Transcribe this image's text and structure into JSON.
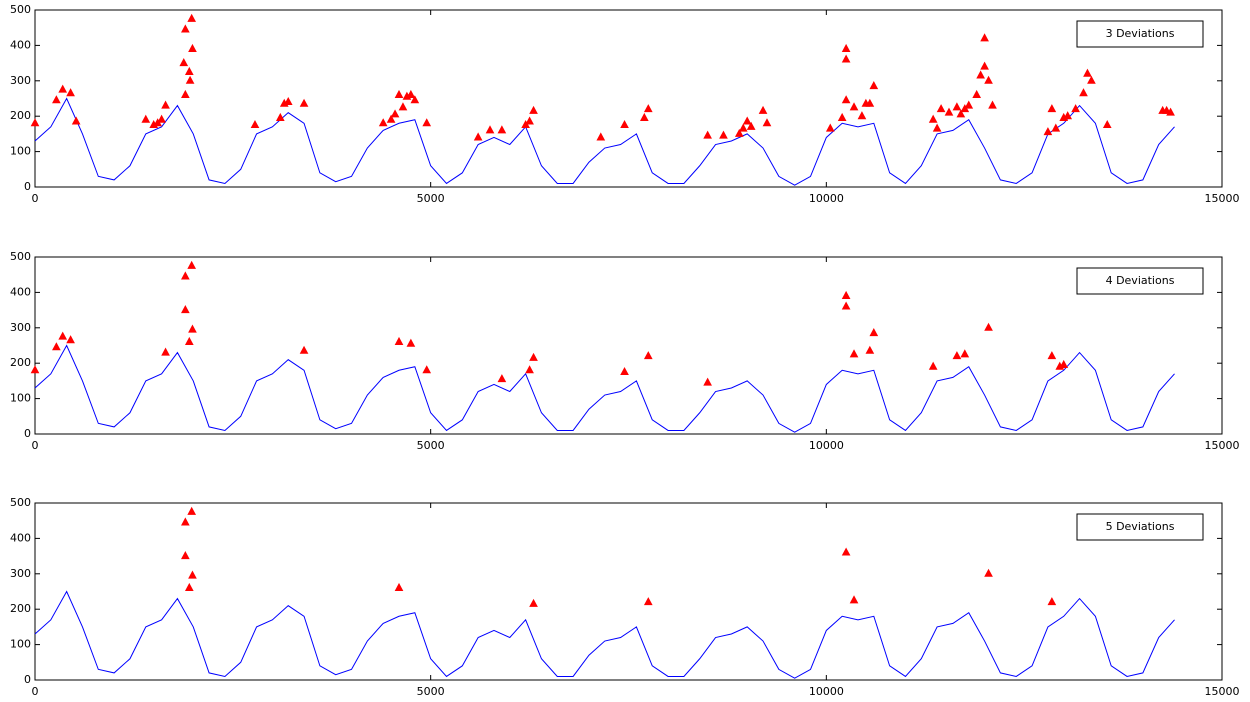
{
  "chart_data": [
    {
      "type": "line",
      "label": "3 Deviations",
      "color": "#0000ff",
      "x": [
        0,
        200,
        400,
        600,
        800,
        1000,
        1200,
        1400,
        1600,
        1800,
        2000,
        2200,
        2400,
        2600,
        2800,
        3000,
        3200,
        3400,
        3600,
        3800,
        4000,
        4200,
        4400,
        4600,
        4800,
        5000,
        5200,
        5400,
        5600,
        5800,
        6000,
        6200,
        6400,
        6600,
        6800,
        7000,
        7200,
        7400,
        7600,
        7800,
        8000,
        8200,
        8400,
        8600,
        8800,
        9000,
        9200,
        9400,
        9600,
        9800,
        10000,
        10200,
        10400,
        10600,
        10800,
        11000,
        11200,
        11400,
        11600,
        11800,
        12000,
        12200,
        12400,
        12600,
        12800,
        13000,
        13200,
        13400,
        13600,
        13800,
        14000,
        14200,
        14400
      ],
      "values": [
        130,
        170,
        250,
        150,
        30,
        20,
        60,
        150,
        170,
        230,
        150,
        20,
        10,
        50,
        150,
        170,
        210,
        180,
        40,
        15,
        30,
        110,
        160,
        180,
        190,
        60,
        10,
        40,
        120,
        140,
        120,
        170,
        60,
        10,
        10,
        70,
        110,
        120,
        150,
        40,
        10,
        10,
        60,
        120,
        130,
        150,
        110,
        30,
        5,
        30,
        140,
        180,
        170,
        180,
        40,
        10,
        60,
        150,
        160,
        190,
        110,
        20,
        10,
        40,
        150,
        180,
        230,
        180,
        40,
        10,
        20,
        120,
        170
      ],
      "markers": {
        "color": "#ff0000",
        "x": [
          0,
          270,
          350,
          450,
          520,
          1400,
          1500,
          1550,
          1600,
          1650,
          1880,
          1900,
          1900,
          1950,
          1960,
          1980,
          1990,
          2780,
          3100,
          3150,
          3200,
          3400,
          4400,
          4500,
          4550,
          4600,
          4650,
          4700,
          4750,
          4800,
          4950,
          5600,
          5750,
          5900,
          6200,
          6250,
          6300,
          7150,
          7450,
          7700,
          7750,
          8500,
          8700,
          8900,
          8950,
          9000,
          9050,
          9200,
          9250,
          10050,
          10200,
          10250,
          10250,
          10250,
          10350,
          10450,
          10500,
          10550,
          10600,
          11350,
          11400,
          11450,
          11550,
          11650,
          11700,
          11750,
          11800,
          11900,
          11950,
          12000,
          12000,
          12050,
          12100,
          12800,
          12850,
          12900,
          13000,
          13050,
          13150,
          13250,
          13300,
          13350,
          13550,
          14250,
          14300,
          14350
        ],
        "values": [
          180,
          245,
          275,
          265,
          185,
          190,
          175,
          180,
          190,
          230,
          350,
          445,
          260,
          325,
          300,
          475,
          390,
          175,
          195,
          235,
          240,
          235,
          180,
          190,
          205,
          260,
          225,
          255,
          260,
          245,
          180,
          140,
          160,
          160,
          175,
          185,
          215,
          140,
          175,
          195,
          220,
          145,
          145,
          150,
          165,
          185,
          170,
          215,
          180,
          165,
          195,
          245,
          360,
          390,
          225,
          200,
          235,
          235,
          285,
          190,
          165,
          220,
          210,
          225,
          205,
          220,
          230,
          260,
          315,
          340,
          420,
          300,
          230,
          155,
          220,
          165,
          195,
          200,
          220,
          265,
          320,
          300,
          175,
          215,
          215,
          210
        ]
      }
    },
    {
      "type": "line",
      "label": "4 Deviations",
      "color": "#0000ff",
      "x": [
        0,
        200,
        400,
        600,
        800,
        1000,
        1200,
        1400,
        1600,
        1800,
        2000,
        2200,
        2400,
        2600,
        2800,
        3000,
        3200,
        3400,
        3600,
        3800,
        4000,
        4200,
        4400,
        4600,
        4800,
        5000,
        5200,
        5400,
        5600,
        5800,
        6000,
        6200,
        6400,
        6600,
        6800,
        7000,
        7200,
        7400,
        7600,
        7800,
        8000,
        8200,
        8400,
        8600,
        8800,
        9000,
        9200,
        9400,
        9600,
        9800,
        10000,
        10200,
        10400,
        10600,
        10800,
        11000,
        11200,
        11400,
        11600,
        11800,
        12000,
        12200,
        12400,
        12600,
        12800,
        13000,
        13200,
        13400,
        13600,
        13800,
        14000,
        14200,
        14400
      ],
      "values": [
        130,
        170,
        250,
        150,
        30,
        20,
        60,
        150,
        170,
        230,
        150,
        20,
        10,
        50,
        150,
        170,
        210,
        180,
        40,
        15,
        30,
        110,
        160,
        180,
        190,
        60,
        10,
        40,
        120,
        140,
        120,
        170,
        60,
        10,
        10,
        70,
        110,
        120,
        150,
        40,
        10,
        10,
        60,
        120,
        130,
        150,
        110,
        30,
        5,
        30,
        140,
        180,
        170,
        180,
        40,
        10,
        60,
        150,
        160,
        190,
        110,
        20,
        10,
        40,
        150,
        180,
        230,
        180,
        40,
        10,
        20,
        120,
        170
      ],
      "markers": {
        "color": "#ff0000",
        "x": [
          0,
          270,
          350,
          450,
          1650,
          1900,
          1900,
          1950,
          1980,
          1990,
          3400,
          4600,
          4750,
          4950,
          5900,
          6250,
          6300,
          7450,
          7750,
          8500,
          10250,
          10250,
          10350,
          10550,
          10600,
          11350,
          11650,
          11750,
          12050,
          12850,
          12950,
          13000
        ],
        "values": [
          180,
          245,
          275,
          265,
          230,
          350,
          445,
          260,
          475,
          295,
          235,
          260,
          255,
          180,
          155,
          180,
          215,
          175,
          220,
          145,
          360,
          390,
          225,
          235,
          285,
          190,
          220,
          225,
          300,
          220,
          190,
          195
        ]
      }
    },
    {
      "type": "line",
      "label": "5 Deviations",
      "color": "#0000ff",
      "x": [
        0,
        200,
        400,
        600,
        800,
        1000,
        1200,
        1400,
        1600,
        1800,
        2000,
        2200,
        2400,
        2600,
        2800,
        3000,
        3200,
        3400,
        3600,
        3800,
        4000,
        4200,
        4400,
        4600,
        4800,
        5000,
        5200,
        5400,
        5600,
        5800,
        6000,
        6200,
        6400,
        6600,
        6800,
        7000,
        7200,
        7400,
        7600,
        7800,
        8000,
        8200,
        8400,
        8600,
        8800,
        9000,
        9200,
        9400,
        9600,
        9800,
        10000,
        10200,
        10400,
        10600,
        10800,
        11000,
        11200,
        11400,
        11600,
        11800,
        12000,
        12200,
        12400,
        12600,
        12800,
        13000,
        13200,
        13400,
        13600,
        13800,
        14000,
        14200,
        14400
      ],
      "values": [
        130,
        170,
        250,
        150,
        30,
        20,
        60,
        150,
        170,
        230,
        150,
        20,
        10,
        50,
        150,
        170,
        210,
        180,
        40,
        15,
        30,
        110,
        160,
        180,
        190,
        60,
        10,
        40,
        120,
        140,
        120,
        170,
        60,
        10,
        10,
        70,
        110,
        120,
        150,
        40,
        10,
        10,
        60,
        120,
        130,
        150,
        110,
        30,
        5,
        30,
        140,
        180,
        170,
        180,
        40,
        10,
        60,
        150,
        160,
        190,
        110,
        20,
        10,
        40,
        150,
        180,
        230,
        180,
        40,
        10,
        20,
        120,
        170
      ],
      "markers": {
        "color": "#ff0000",
        "x": [
          1900,
          1900,
          1950,
          1980,
          1990,
          4600,
          6300,
          7750,
          10250,
          10350,
          12050,
          12850
        ],
        "values": [
          350,
          445,
          260,
          475,
          295,
          260,
          215,
          220,
          360,
          225,
          300,
          220
        ]
      }
    }
  ],
  "axes": {
    "xlim": [
      0,
      15000
    ],
    "xticks": [
      0,
      5000,
      10000,
      15000
    ],
    "ylim": [
      0,
      500
    ],
    "yticks": [
      0,
      100,
      200,
      300,
      400,
      500
    ]
  }
}
